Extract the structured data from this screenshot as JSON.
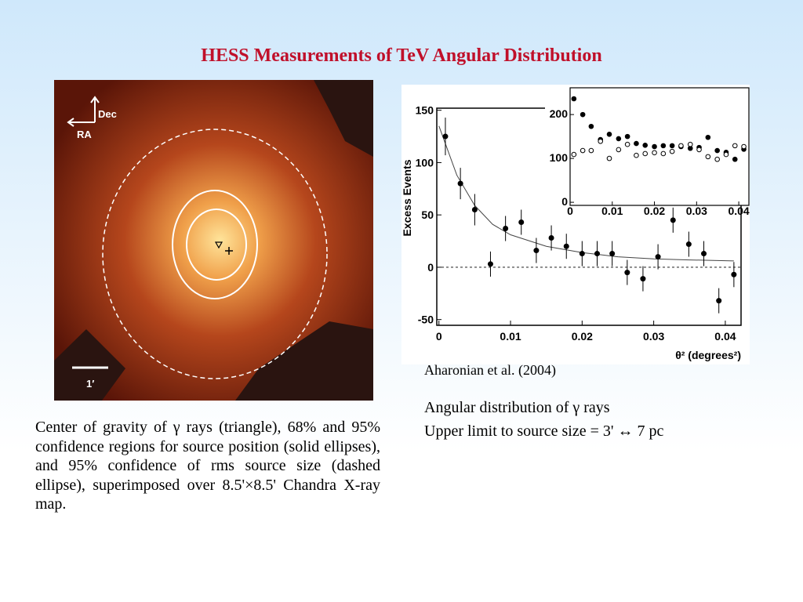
{
  "title": "HESS Measurements of TeV Angular Distribution",
  "map": {
    "labels": {
      "dec": "Dec",
      "ra": "RA",
      "scale": "1′"
    },
    "caption": "Center of gravity of γ rays (triangle), 68% and 95% confidence regions for source position (solid ellipses), and 95% confidence of rms source size (dashed ellipse), superimposed over 8.5'×8.5' Chandra X-ray map."
  },
  "chart_data": {
    "type": "scatter",
    "xlabel": "θ² (degrees²)",
    "ylabel": "Excess Events",
    "xlim": [
      -0.0003,
      0.0422
    ],
    "ylim": [
      -55.5,
      158
    ],
    "xticks": [
      0,
      0.01,
      0.02,
      0.03,
      0.04
    ],
    "yticks": [
      -50,
      0,
      50,
      100,
      150
    ],
    "x": [
      0.0009,
      0.003,
      0.005,
      0.0072,
      0.0093,
      0.0115,
      0.0136,
      0.0157,
      0.0178,
      0.02,
      0.0221,
      0.0242,
      0.0263,
      0.0285,
      0.0306,
      0.0327,
      0.0349,
      0.037,
      0.0391,
      0.0412
    ],
    "series": [
      {
        "color": "#000000",
        "values": [
          125,
          80,
          55,
          3,
          37,
          43,
          16,
          28,
          20,
          13,
          13,
          13,
          -5,
          -11,
          10,
          45,
          22,
          13,
          -32,
          -7
        ],
        "errors": [
          18,
          15,
          15,
          12,
          12,
          12,
          12,
          12,
          12,
          12,
          12,
          12,
          12,
          12,
          12,
          12,
          12,
          12,
          12,
          12
        ]
      }
    ],
    "fit": {
      "x": [
        0,
        0.0025,
        0.005,
        0.0075,
        0.01,
        0.015,
        0.02,
        0.025,
        0.03,
        0.035,
        0.0412
      ],
      "values": [
        135,
        88,
        59,
        41,
        31,
        20,
        14,
        10,
        8,
        7,
        6
      ]
    },
    "inset": {
      "xlim": [
        0,
        0.0424
      ],
      "ylim": [
        -7,
        261
      ],
      "xticks": [
        0,
        0.01,
        0.02,
        0.03,
        0.04
      ],
      "yticks": [
        0,
        100,
        200
      ],
      "series": [
        {
          "fill": "filled",
          "values": [
            236,
            200,
            173,
            143,
            155,
            145,
            150,
            134,
            130,
            127,
            129,
            129,
            127,
            123,
            125,
            148,
            118,
            114,
            98,
            121
          ]
        },
        {
          "fill": "open",
          "values": [
            109,
            118,
            118,
            139,
            100,
            120,
            132,
            107,
            111,
            113,
            111,
            116,
            129,
            132,
            120,
            104,
            98,
            109,
            129,
            127
          ]
        }
      ]
    }
  },
  "credit": "Aharonian et al. (2004)",
  "notes": [
    "Angular distribution of γ rays",
    "Upper limit to source size = 3' ↔ 7 pc"
  ]
}
